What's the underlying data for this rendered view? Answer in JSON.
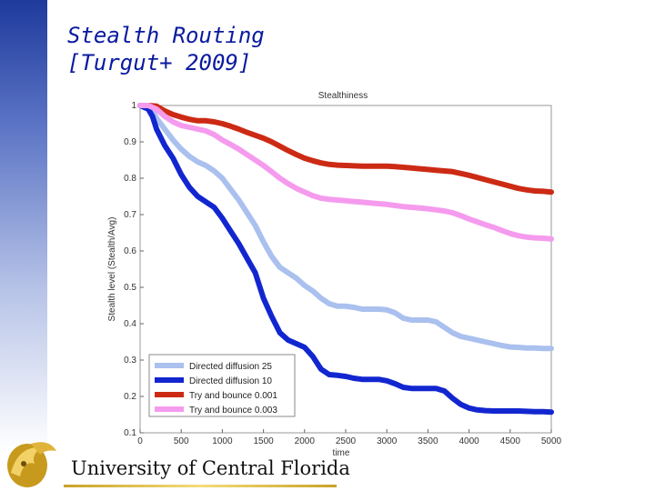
{
  "slide": {
    "title_line1": "Stealth Routing",
    "title_line2": "[Turgut+ 2009]",
    "footer_text": "University of Central Florida"
  },
  "chart_data": {
    "type": "line",
    "title": "Stealthiness",
    "xlabel": "time",
    "ylabel": "Stealth level (Stealth/Avg)",
    "xlim": [
      0,
      5000
    ],
    "ylim": [
      0.1,
      1.0
    ],
    "xticks": [
      0,
      500,
      1000,
      1500,
      2000,
      2500,
      3000,
      3500,
      4000,
      4500,
      5000
    ],
    "yticks": [
      0.1,
      0.2,
      0.3,
      0.4,
      0.5,
      0.6,
      0.7,
      0.8,
      0.9,
      1.0
    ],
    "ytick_labels": [
      "0.1",
      "0.2",
      "0.3",
      "0.4",
      "0.5",
      "0.6",
      "0.7",
      "0.8",
      "0.9",
      "1"
    ],
    "grid": false,
    "legend_position": "bottom-left",
    "series": [
      {
        "name": "Directed diffusion 25",
        "color": "#aac0ee",
        "x": [
          0,
          100,
          150,
          200,
          300,
          400,
          500,
          600,
          700,
          800,
          900,
          1000,
          1100,
          1200,
          1300,
          1400,
          1500,
          1600,
          1700,
          1800,
          1900,
          2000,
          2100,
          2200,
          2300,
          2400,
          2500,
          2600,
          2700,
          2800,
          2900,
          3000,
          3100,
          3200,
          3300,
          3400,
          3500,
          3600,
          3700,
          3800,
          3900,
          4000,
          4100,
          4200,
          4300,
          4400,
          4500,
          4600,
          4700,
          4800,
          4900,
          5000
        ],
        "y": [
          1.0,
          0.995,
          0.985,
          0.965,
          0.935,
          0.905,
          0.88,
          0.86,
          0.845,
          0.835,
          0.82,
          0.8,
          0.77,
          0.74,
          0.705,
          0.67,
          0.625,
          0.585,
          0.555,
          0.54,
          0.525,
          0.505,
          0.49,
          0.47,
          0.455,
          0.448,
          0.448,
          0.445,
          0.44,
          0.44,
          0.44,
          0.438,
          0.43,
          0.415,
          0.41,
          0.41,
          0.41,
          0.405,
          0.39,
          0.375,
          0.365,
          0.36,
          0.355,
          0.35,
          0.345,
          0.34,
          0.336,
          0.335,
          0.333,
          0.333,
          0.332,
          0.332
        ]
      },
      {
        "name": "Directed diffusion 10",
        "color": "#1226d0",
        "x": [
          0,
          100,
          150,
          200,
          300,
          400,
          500,
          600,
          700,
          800,
          900,
          1000,
          1100,
          1200,
          1300,
          1400,
          1500,
          1600,
          1700,
          1800,
          1900,
          2000,
          2100,
          2200,
          2300,
          2400,
          2500,
          2600,
          2700,
          2800,
          2900,
          3000,
          3100,
          3200,
          3300,
          3400,
          3500,
          3600,
          3700,
          3800,
          3900,
          4000,
          4100,
          4200,
          4300,
          4400,
          4500,
          4600,
          4700,
          4800,
          4900,
          5000
        ],
        "y": [
          1.0,
          0.99,
          0.97,
          0.935,
          0.89,
          0.855,
          0.81,
          0.775,
          0.75,
          0.735,
          0.72,
          0.69,
          0.655,
          0.62,
          0.58,
          0.54,
          0.47,
          0.42,
          0.375,
          0.355,
          0.345,
          0.335,
          0.31,
          0.275,
          0.26,
          0.258,
          0.255,
          0.25,
          0.247,
          0.247,
          0.247,
          0.243,
          0.235,
          0.225,
          0.222,
          0.222,
          0.222,
          0.222,
          0.215,
          0.195,
          0.178,
          0.168,
          0.163,
          0.161,
          0.16,
          0.16,
          0.16,
          0.16,
          0.159,
          0.158,
          0.158,
          0.157
        ]
      },
      {
        "name": "Try and bounce 0.001",
        "color": "#cc2a14",
        "x": [
          0,
          100,
          200,
          300,
          400,
          500,
          600,
          700,
          800,
          900,
          1000,
          1100,
          1200,
          1300,
          1400,
          1500,
          1600,
          1700,
          1800,
          1900,
          2000,
          2100,
          2200,
          2300,
          2400,
          2500,
          2600,
          2700,
          2800,
          2900,
          3000,
          3100,
          3200,
          3300,
          3400,
          3500,
          3600,
          3700,
          3800,
          3900,
          4000,
          4100,
          4200,
          4300,
          4400,
          4500,
          4600,
          4700,
          4800,
          4900,
          5000
        ],
        "y": [
          1.0,
          1.0,
          0.998,
          0.985,
          0.975,
          0.968,
          0.962,
          0.958,
          0.958,
          0.955,
          0.95,
          0.943,
          0.935,
          0.926,
          0.918,
          0.91,
          0.9,
          0.888,
          0.876,
          0.865,
          0.855,
          0.848,
          0.842,
          0.838,
          0.836,
          0.835,
          0.834,
          0.833,
          0.833,
          0.833,
          0.833,
          0.832,
          0.83,
          0.828,
          0.826,
          0.824,
          0.822,
          0.82,
          0.818,
          0.813,
          0.808,
          0.802,
          0.796,
          0.79,
          0.784,
          0.778,
          0.772,
          0.768,
          0.765,
          0.764,
          0.762
        ]
      },
      {
        "name": "Try and bounce 0.003",
        "color": "#f59bee",
        "x": [
          0,
          100,
          200,
          300,
          400,
          500,
          600,
          700,
          800,
          900,
          1000,
          1100,
          1200,
          1300,
          1400,
          1500,
          1600,
          1700,
          1800,
          1900,
          2000,
          2100,
          2200,
          2300,
          2400,
          2500,
          2600,
          2700,
          2800,
          2900,
          3000,
          3100,
          3200,
          3300,
          3400,
          3500,
          3600,
          3700,
          3800,
          3900,
          4000,
          4100,
          4200,
          4300,
          4400,
          4500,
          4600,
          4700,
          4800,
          4900,
          5000
        ],
        "y": [
          1.0,
          1.0,
          0.99,
          0.97,
          0.955,
          0.945,
          0.94,
          0.935,
          0.93,
          0.92,
          0.905,
          0.893,
          0.88,
          0.865,
          0.85,
          0.835,
          0.818,
          0.8,
          0.785,
          0.772,
          0.762,
          0.752,
          0.745,
          0.742,
          0.74,
          0.738,
          0.736,
          0.734,
          0.732,
          0.73,
          0.728,
          0.725,
          0.722,
          0.72,
          0.718,
          0.716,
          0.713,
          0.71,
          0.705,
          0.697,
          0.688,
          0.68,
          0.672,
          0.665,
          0.656,
          0.648,
          0.642,
          0.638,
          0.636,
          0.635,
          0.633
        ]
      }
    ]
  }
}
